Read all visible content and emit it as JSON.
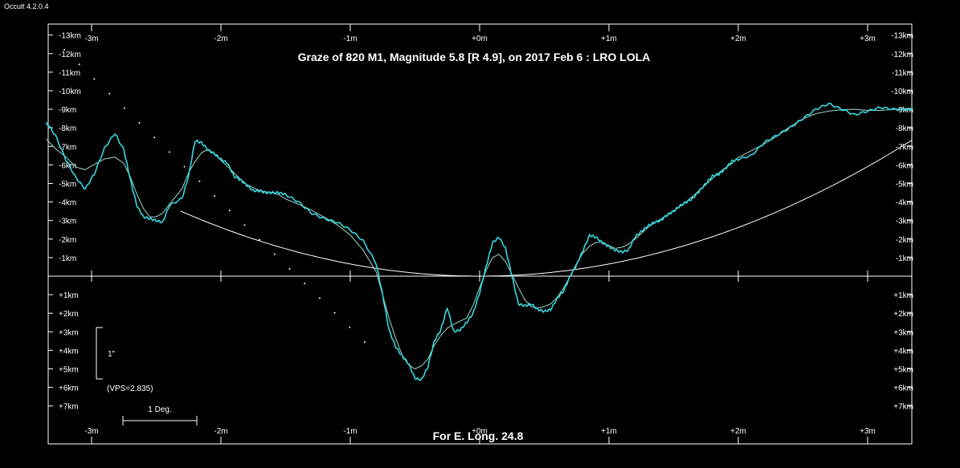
{
  "app": {
    "title": "Occult 4.2.0.4"
  },
  "chart_data": {
    "type": "line",
    "title": "Graze of  820 M1,  Magnitude 5.8 [R 4.9],  on 2017 Feb  6  :  LRO LOLA",
    "footer": "For E. Long. 24.8",
    "x_ticks": [
      "-3m",
      "-2m",
      "-1m",
      "+0m",
      "+1m",
      "+2m",
      "+3m"
    ],
    "x_tick_values": [
      -3,
      -2,
      -1,
      0,
      1,
      2,
      3
    ],
    "xlim": [
      -3.35,
      3.35
    ],
    "y_ticks": [
      "-13km",
      "-12km",
      "-11km",
      "-10km",
      "-9km",
      "-8km",
      "-7km",
      "-6km",
      "-5km",
      "-4km",
      "-3km",
      "-2km",
      "-1km",
      "+1km",
      "+2km",
      "+3km",
      "+4km",
      "+5km",
      "+6km",
      "+7km"
    ],
    "y_tick_values": [
      -13,
      -12,
      -11,
      -10,
      -9,
      -8,
      -7,
      -6,
      -5,
      -4,
      -3,
      -2,
      -1,
      1,
      2,
      3,
      4,
      5,
      6,
      7
    ],
    "ylim": [
      -13.5,
      9
    ],
    "scale_bar": {
      "label": "1\"",
      "vps": "(VPS=2.835)"
    },
    "deg_bar": {
      "label": "1 Deg."
    },
    "colors": {
      "profile": "#36d8e0",
      "smooth": "#9ed8c8",
      "limb": "#ffffff",
      "axis": "#ffffff"
    },
    "series": [
      {
        "x": [
          -3.35,
          -3.28,
          -3.2,
          -3.12,
          -3.05,
          -2.98,
          -2.9,
          -2.82,
          -2.75,
          -2.7,
          -2.65,
          -2.6,
          -2.55,
          -2.5,
          -2.45,
          -2.4,
          -2.3,
          -2.25,
          -2.2,
          -2.15,
          -2.1,
          -2.05,
          -2.0,
          -1.95,
          -1.9,
          -1.85,
          -1.8,
          -1.75,
          -1.7,
          -1.65,
          -1.6,
          -1.55,
          -1.5,
          -1.4,
          -1.3,
          -1.2,
          -1.1,
          -1.0,
          -0.9,
          -0.8,
          -0.75,
          -0.7,
          -0.65,
          -0.6,
          -0.55,
          -0.5,
          -0.45,
          -0.4,
          -0.35,
          -0.3,
          -0.25,
          -0.2,
          -0.15,
          -0.1,
          -0.05,
          0.0,
          0.05,
          0.1,
          0.15,
          0.2,
          0.25,
          0.3,
          0.35,
          0.4,
          0.45,
          0.5,
          0.55,
          0.6,
          0.65,
          0.7,
          0.75,
          0.8,
          0.85,
          0.9,
          0.95,
          1.0,
          1.05,
          1.1,
          1.15,
          1.2,
          1.25,
          1.3,
          1.35,
          1.4,
          1.45,
          1.5,
          1.55,
          1.6,
          1.65,
          1.7,
          1.75,
          1.8,
          1.85,
          1.9,
          1.95,
          2.0,
          2.1,
          2.2,
          2.3,
          2.4,
          2.5,
          2.6,
          2.7,
          2.8,
          2.9,
          3.0,
          3.1,
          3.2,
          3.3,
          3.35
        ],
        "y": [
          -8.3,
          -7.6,
          -6.3,
          -5.3,
          -4.7,
          -5.5,
          -6.9,
          -7.7,
          -6.8,
          -5.2,
          -3.8,
          -3.2,
          -3.1,
          -3.0,
          -2.9,
          -3.8,
          -4.2,
          -5.4,
          -7.3,
          -7.2,
          -6.8,
          -6.6,
          -6.3,
          -6.1,
          -5.4,
          -5.2,
          -4.9,
          -4.6,
          -4.6,
          -4.5,
          -4.5,
          -4.5,
          -4.4,
          -4.0,
          -3.4,
          -3.1,
          -2.9,
          -2.5,
          -1.9,
          -0.7,
          1.0,
          2.9,
          3.8,
          4.3,
          4.7,
          5.5,
          5.6,
          4.9,
          3.5,
          2.9,
          1.7,
          3.0,
          2.9,
          2.5,
          2.0,
          0.9,
          -0.5,
          -1.8,
          -2.1,
          -1.5,
          0.0,
          1.5,
          1.6,
          1.5,
          1.8,
          1.9,
          1.8,
          1.2,
          0.8,
          0.0,
          -0.6,
          -1.4,
          -2.2,
          -2.1,
          -1.8,
          -1.6,
          -1.4,
          -1.3,
          -1.4,
          -2.1,
          -2.4,
          -2.7,
          -2.9,
          -3.0,
          -3.3,
          -3.5,
          -3.8,
          -4.0,
          -4.2,
          -4.6,
          -5.0,
          -5.4,
          -5.5,
          -5.8,
          -6.2,
          -6.3,
          -6.5,
          -7.2,
          -7.6,
          -8.0,
          -8.5,
          -9.0,
          -9.3,
          -9.0,
          -8.7,
          -8.9,
          -9.1,
          -9.0,
          -9.0,
          -9.0
        ]
      }
    ]
  }
}
